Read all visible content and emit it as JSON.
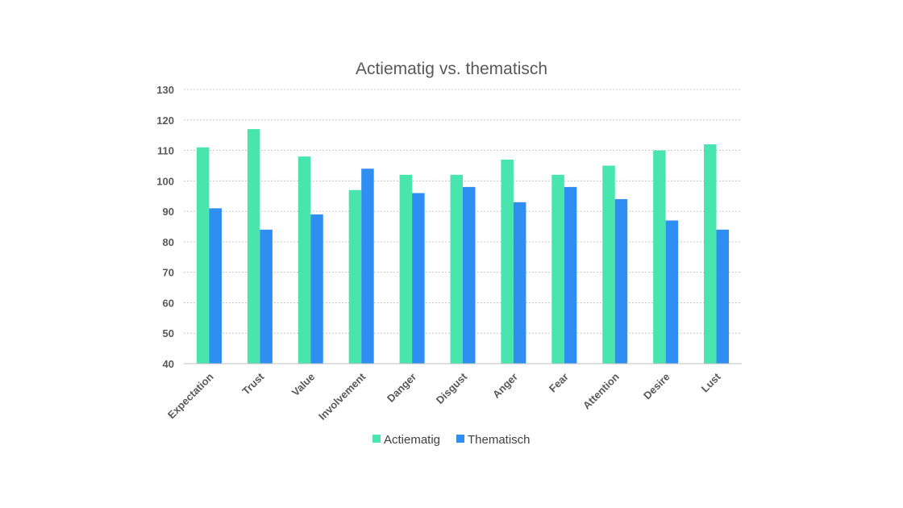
{
  "chart_data": {
    "type": "bar",
    "title": "Actiematig vs. thematisch",
    "xlabel": "",
    "ylabel": "",
    "ylim": [
      40,
      130
    ],
    "yticks": [
      40,
      50,
      60,
      70,
      80,
      90,
      100,
      110,
      120,
      130
    ],
    "grid": true,
    "legend_position": "bottom",
    "categories": [
      "Expectation",
      "Trust",
      "Value",
      "Involvement",
      "Danger",
      "Disgust",
      "Anger",
      "Fear",
      "Attention",
      "Desire",
      "Lust"
    ],
    "series": [
      {
        "name": "Actiematig",
        "color": "#48E5AE",
        "values": [
          111,
          117,
          108,
          97,
          102,
          102,
          107,
          102,
          105,
          110,
          112
        ]
      },
      {
        "name": "Thematisch",
        "color": "#2F8EF2",
        "values": [
          91,
          84,
          89,
          104,
          96,
          98,
          93,
          98,
          94,
          87,
          84
        ]
      }
    ]
  }
}
